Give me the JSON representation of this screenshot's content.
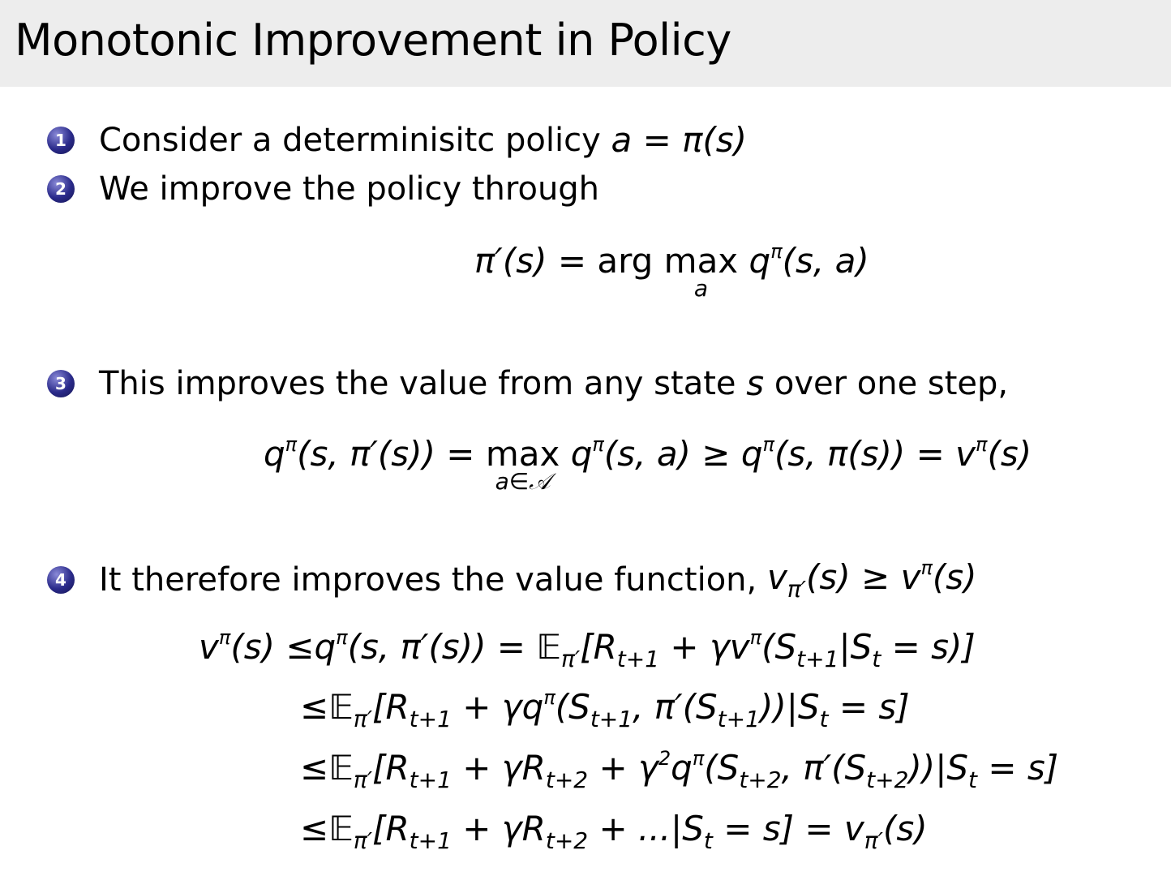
{
  "title": "Monotonic Improvement in Policy",
  "items": [
    {
      "num": "1",
      "text": "Consider a determinisitc policy ",
      "math": [
        [
          "a = π(s)",
          ""
        ]
      ]
    },
    {
      "num": "2",
      "text": "We improve the policy through",
      "math": []
    },
    {
      "num": "3",
      "text": "This improves the value from any state ",
      "math": [
        [
          "s",
          ""
        ]
      ],
      "tail": " over one step,"
    },
    {
      "num": "4",
      "text": "It therefore improves the value function, ",
      "math": [
        [
          "v",
          ""
        ],
        [
          "π′",
          "sub"
        ],
        [
          "(s) ≥ v",
          ""
        ],
        [
          "π",
          "sup"
        ],
        [
          "(s)",
          ""
        ]
      ]
    }
  ],
  "equations": [
    [
      [
        "π′(s) = ",
        "n"
      ],
      [
        "arg ",
        "up"
      ],
      [
        "max",
        "under:a"
      ],
      [
        " q",
        "n"
      ],
      [
        "π",
        "sup"
      ],
      [
        "(s, a)",
        "n"
      ]
    ],
    [
      [
        "q",
        "n"
      ],
      [
        "π",
        "sup"
      ],
      [
        "(s, π′(s)) = ",
        "n"
      ],
      [
        "max",
        "under:a∈𝒜"
      ],
      [
        " q",
        "n"
      ],
      [
        "π",
        "sup"
      ],
      [
        "(s, a) ≥ q",
        "n"
      ],
      [
        "π",
        "sup"
      ],
      [
        "(s, π(s)) = v",
        "n"
      ],
      [
        "π",
        "sup"
      ],
      [
        "(s)",
        "n"
      ]
    ],
    [
      [
        "v",
        "n"
      ],
      [
        "π",
        "sup"
      ],
      [
        "(s) ≤q",
        "n"
      ],
      [
        "π",
        "sup"
      ],
      [
        "(s, π′(s)) = 𝔼",
        "n"
      ],
      [
        "π′",
        "sub"
      ],
      [
        "[R",
        "n"
      ],
      [
        "t+1",
        "sub"
      ],
      [
        " + γv",
        "n"
      ],
      [
        "π",
        "sup"
      ],
      [
        "(S",
        "n"
      ],
      [
        "t+1",
        "sub"
      ],
      [
        "|S",
        "n"
      ],
      [
        "t",
        "sub"
      ],
      [
        " = s)]",
        "n"
      ]
    ],
    [
      [
        "≤𝔼",
        "n"
      ],
      [
        "π′",
        "sub"
      ],
      [
        "[R",
        "n"
      ],
      [
        "t+1",
        "sub"
      ],
      [
        " + γq",
        "n"
      ],
      [
        "π",
        "sup"
      ],
      [
        "(S",
        "n"
      ],
      [
        "t+1",
        "sub"
      ],
      [
        ", π′(S",
        "n"
      ],
      [
        "t+1",
        "sub"
      ],
      [
        "))|S",
        "n"
      ],
      [
        "t",
        "sub"
      ],
      [
        " = s]",
        "n"
      ]
    ],
    [
      [
        "≤𝔼",
        "n"
      ],
      [
        "π′",
        "sub"
      ],
      [
        "[R",
        "n"
      ],
      [
        "t+1",
        "sub"
      ],
      [
        " + γR",
        "n"
      ],
      [
        "t+2",
        "sub"
      ],
      [
        " + γ",
        "n"
      ],
      [
        "2",
        "sup"
      ],
      [
        "q",
        "n"
      ],
      [
        "π",
        "sup"
      ],
      [
        "(S",
        "n"
      ],
      [
        "t+2",
        "sub"
      ],
      [
        ", π′(S",
        "n"
      ],
      [
        "t+2",
        "sub"
      ],
      [
        "))|S",
        "n"
      ],
      [
        "t",
        "sub"
      ],
      [
        " = s]",
        "n"
      ]
    ],
    [
      [
        "≤𝔼",
        "n"
      ],
      [
        "π′",
        "sub"
      ],
      [
        "[R",
        "n"
      ],
      [
        "t+1",
        "sub"
      ],
      [
        " + γR",
        "n"
      ],
      [
        "t+2",
        "sub"
      ],
      [
        " + ...|S",
        "n"
      ],
      [
        "t",
        "sub"
      ],
      [
        " = s] = v",
        "n"
      ],
      [
        "π′",
        "sub"
      ],
      [
        "(s)",
        "n"
      ]
    ]
  ]
}
